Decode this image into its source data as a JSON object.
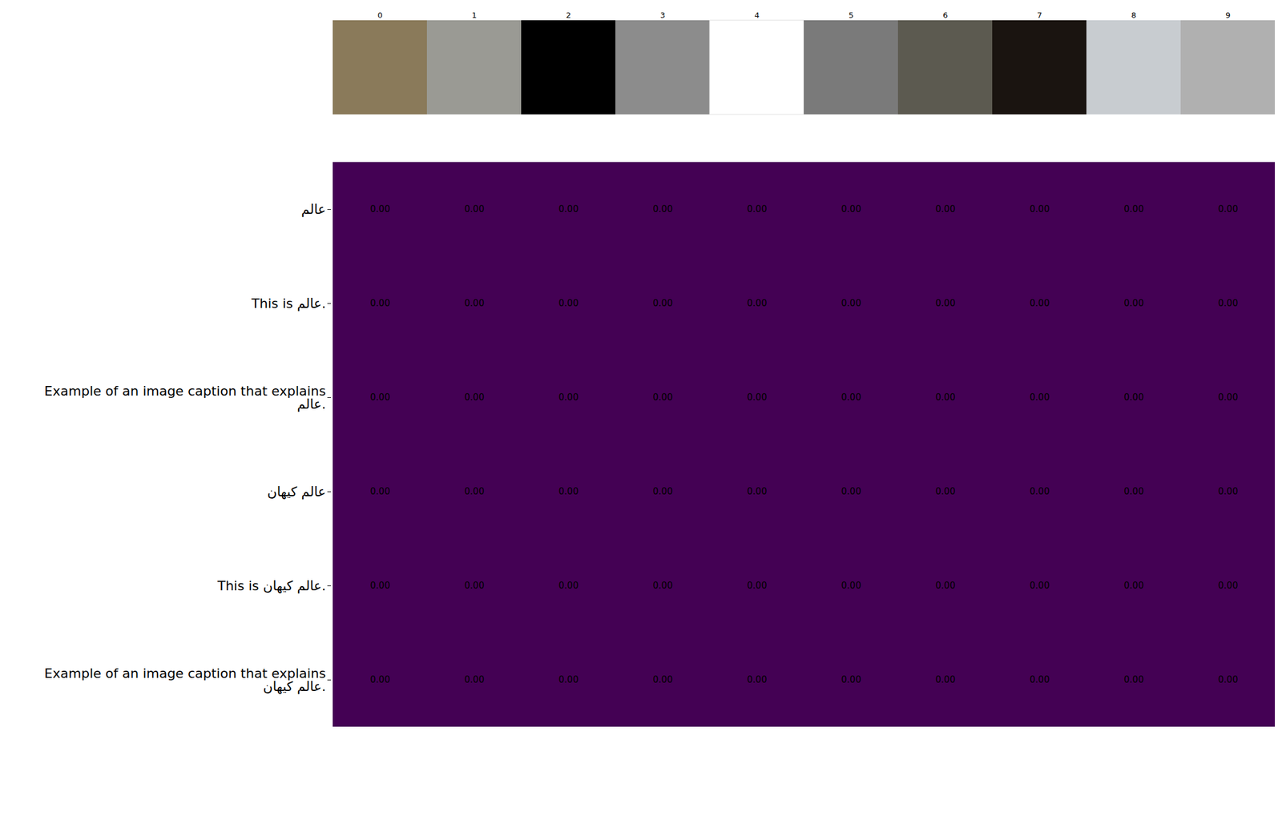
{
  "chart_data": {
    "type": "heatmap",
    "x": [
      0,
      1,
      2,
      3,
      4,
      5,
      6,
      7,
      8,
      9
    ],
    "y": [
      "عالم",
      "This is عالم.",
      "Example of an image caption that explains\nعالم.",
      "عالم کیهان",
      "This is عالم کیهان.",
      "Example of an image caption that explains\nعالم کیهان."
    ],
    "values": [
      [
        0,
        0,
        0,
        0,
        0,
        0,
        0,
        0,
        0,
        0
      ],
      [
        0,
        0,
        0,
        0,
        0,
        0,
        0,
        0,
        0,
        0
      ],
      [
        0,
        0,
        0,
        0,
        0,
        0,
        0,
        0,
        0,
        0
      ],
      [
        0,
        0,
        0,
        0,
        0,
        0,
        0,
        0,
        0,
        0
      ],
      [
        0,
        0,
        0,
        0,
        0,
        0,
        0,
        0,
        0,
        0
      ],
      [
        0,
        0,
        0,
        0,
        0,
        0,
        0,
        0,
        0,
        0
      ]
    ],
    "value_labels": [
      [
        "0.00",
        "0.00",
        "0.00",
        "0.00",
        "0.00",
        "0.00",
        "0.00",
        "0.00",
        "0.00",
        "0.00"
      ],
      [
        "0.00",
        "0.00",
        "0.00",
        "0.00",
        "0.00",
        "0.00",
        "0.00",
        "0.00",
        "0.00",
        "0.00"
      ],
      [
        "0.00",
        "0.00",
        "0.00",
        "0.00",
        "0.00",
        "0.00",
        "0.00",
        "0.00",
        "0.00",
        "0.00"
      ],
      [
        "0.00",
        "0.00",
        "0.00",
        "0.00",
        "0.00",
        "0.00",
        "0.00",
        "0.00",
        "0.00",
        "0.00"
      ],
      [
        "0.00",
        "0.00",
        "0.00",
        "0.00",
        "0.00",
        "0.00",
        "0.00",
        "0.00",
        "0.00",
        "0.00"
      ],
      [
        "0.00",
        "0.00",
        "0.00",
        "0.00",
        "0.00",
        "0.00",
        "0.00",
        "0.00",
        "0.00",
        "0.00"
      ]
    ],
    "color": "#440154",
    "data_labels": true
  }
}
